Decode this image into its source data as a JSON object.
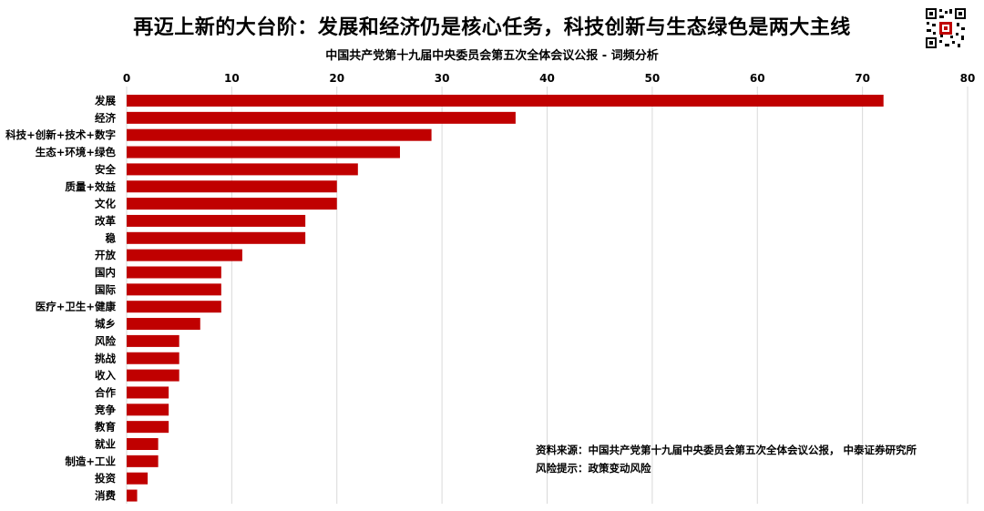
{
  "title": "再迈上新的大台阶：发展和经济仍是核心任务，科技创新与生态绿色是两大主线",
  "subtitle": "中国共产党第十九届中央委员会第五次全体会议公报 - 词频分析",
  "source_note": "资料来源：中国共产党第十九届中央委员会第五次全体会议公报， 中泰证券研究所",
  "risk_note": "风险提示：政策变动风险",
  "colors": {
    "bar": "#C00000",
    "grid": "#D9D9D9"
  },
  "qr_icon": "qr-code-icon",
  "chart_data": {
    "type": "bar",
    "orientation": "horizontal",
    "title": "再迈上新的大台阶：发展和经济仍是核心任务，科技创新与生态绿色是两大主线",
    "subtitle": "中国共产党第十九届中央委员会第五次全体会议公报 - 词频分析",
    "xlabel": "",
    "ylabel": "",
    "xlim": [
      0,
      80
    ],
    "x_ticks": [
      0,
      10,
      20,
      30,
      40,
      50,
      60,
      70,
      80
    ],
    "axis_position": "top",
    "grid": true,
    "categories": [
      "发展",
      "经济",
      "科技+创新+技术+数字",
      "生态+环境+绿色",
      "安全",
      "质量+效益",
      "文化",
      "改革",
      "稳",
      "开放",
      "国内",
      "国际",
      "医疗+卫生+健康",
      "城乡",
      "风险",
      "挑战",
      "收入",
      "合作",
      "竞争",
      "教育",
      "就业",
      "制造+工业",
      "投资",
      "消费"
    ],
    "values": [
      72,
      37,
      29,
      26,
      22,
      20,
      20,
      17,
      17,
      11,
      9,
      9,
      9,
      7,
      5,
      5,
      5,
      4,
      4,
      4,
      3,
      3,
      2,
      1
    ]
  }
}
